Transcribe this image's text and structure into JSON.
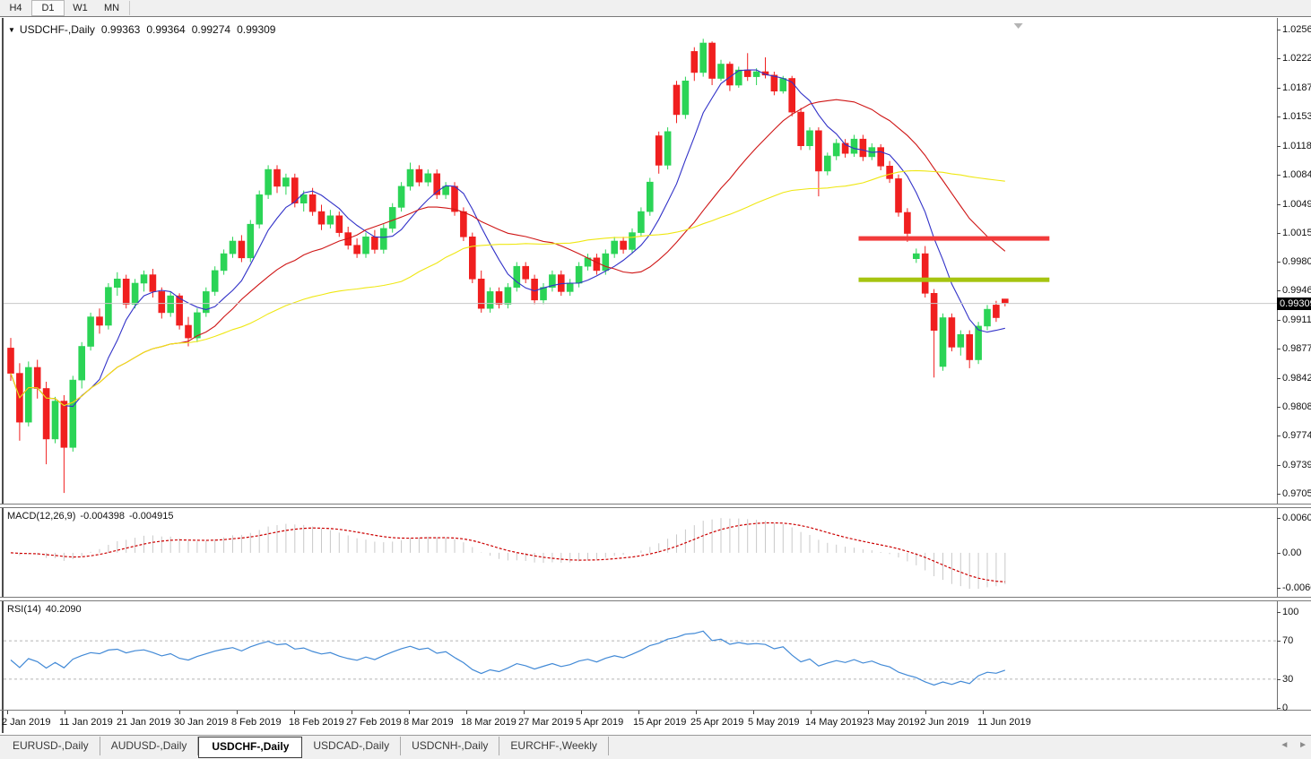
{
  "toolbar": {
    "buttons": [
      "H4",
      "D1",
      "W1",
      "MN"
    ],
    "active": "D1"
  },
  "icons": {
    "dropdown": "▼",
    "scroll_left": "◄",
    "scroll_right": "►"
  },
  "header": {
    "symbol": "USDCHF-,Daily",
    "open": "0.99363",
    "high": "0.99364",
    "low": "0.99274",
    "close": "0.99309"
  },
  "tabs": {
    "labels": [
      "EURUSD-,Daily",
      "AUDUSD-,Daily",
      "USDCHF-,Daily",
      "USDCAD-,Daily",
      "USDCNH-,Daily",
      "EURCHF-,Weekly"
    ],
    "active": "USDCHF-,Daily"
  },
  "chart_data": {
    "type": "candlestick",
    "symbol": "USDCHF",
    "timeframe": "Daily",
    "price_range": [
      0.9705,
      1.0256
    ],
    "current_price": 0.99309,
    "current_price_display": "0.99309",
    "price_axis_ticks": [
      "1.02560",
      "1.02220",
      "1.01870",
      "1.01530",
      "1.01180",
      "1.00840",
      "1.00490",
      "1.00150",
      "0.99800",
      "0.99460",
      "0.99110",
      "0.98770",
      "0.98420",
      "0.98080",
      "0.97740",
      "0.97390",
      "0.97050"
    ],
    "x_axis": {
      "tick_labels": [
        "2 Jan 2019",
        "11 Jan 2019",
        "21 Jan 2019",
        "30 Jan 2019",
        "8 Feb 2019",
        "18 Feb 2019",
        "27 Feb 2019",
        "8 Mar 2019",
        "18 Mar 2019",
        "27 Mar 2019",
        "5 Apr 2019",
        "15 Apr 2019",
        "25 Apr 2019",
        "5 May 2019",
        "14 May 2019",
        "23 May 2019",
        "2 Jun 2019",
        "11 Jun 2019"
      ],
      "tick_x": [
        4,
        68,
        132,
        196,
        260,
        324,
        388,
        452,
        516,
        580,
        644,
        708,
        772,
        836,
        900,
        964,
        1028,
        1092
      ]
    },
    "candles": [
      [
        0.9878,
        0.989,
        0.9839,
        0.9848
      ],
      [
        0.9848,
        0.986,
        0.9768,
        0.979
      ],
      [
        0.979,
        0.9862,
        0.9785,
        0.9855
      ],
      [
        0.9855,
        0.9864,
        0.9818,
        0.983
      ],
      [
        0.983,
        0.9838,
        0.974,
        0.977
      ],
      [
        0.977,
        0.982,
        0.9765,
        0.9815
      ],
      [
        0.9815,
        0.9822,
        0.9706,
        0.976
      ],
      [
        0.976,
        0.9845,
        0.9755,
        0.984
      ],
      [
        0.984,
        0.9885,
        0.983,
        0.988
      ],
      [
        0.988,
        0.992,
        0.9875,
        0.9915
      ],
      [
        0.9915,
        0.9925,
        0.9895,
        0.9905
      ],
      [
        0.9905,
        0.9955,
        0.99,
        0.995
      ],
      [
        0.995,
        0.9968,
        0.994,
        0.996
      ],
      [
        0.996,
        0.9965,
        0.9925,
        0.993
      ],
      [
        0.993,
        0.996,
        0.9925,
        0.9955
      ],
      [
        0.9955,
        0.997,
        0.9945,
        0.9965
      ],
      [
        0.9965,
        0.9972,
        0.9938,
        0.9945
      ],
      [
        0.9945,
        0.995,
        0.9913,
        0.992
      ],
      [
        0.992,
        0.9945,
        0.9915,
        0.994
      ],
      [
        0.994,
        0.9943,
        0.99,
        0.9905
      ],
      [
        0.9905,
        0.9915,
        0.988,
        0.989
      ],
      [
        0.989,
        0.9925,
        0.9885,
        0.992
      ],
      [
        0.992,
        0.995,
        0.9915,
        0.9945
      ],
      [
        0.9945,
        0.9975,
        0.994,
        0.997
      ],
      [
        0.997,
        0.9995,
        0.9965,
        0.999
      ],
      [
        0.999,
        1.001,
        0.9985,
        1.0005
      ],
      [
        1.0005,
        1.0012,
        0.998,
        0.9985
      ],
      [
        0.9985,
        1.003,
        0.998,
        1.0025
      ],
      [
        1.0025,
        1.0065,
        1.002,
        1.006
      ],
      [
        1.006,
        1.0095,
        1.0055,
        1.009
      ],
      [
        1.009,
        1.0095,
        1.0062,
        1.007
      ],
      [
        1.007,
        1.0085,
        1.006,
        1.008
      ],
      [
        1.008,
        1.0085,
        1.0045,
        1.005
      ],
      [
        1.005,
        1.0065,
        1.004,
        1.006
      ],
      [
        1.006,
        1.0068,
        1.0035,
        1.004
      ],
      [
        1.004,
        1.0048,
        1.0018,
        1.0025
      ],
      [
        1.0025,
        1.0042,
        1.002,
        1.0035
      ],
      [
        1.0035,
        1.004,
        1.001,
        1.0015
      ],
      [
        1.0015,
        1.0022,
        0.9995,
        1.0
      ],
      [
        1.0,
        1.0008,
        0.9985,
        0.999
      ],
      [
        0.999,
        1.0015,
        0.9985,
        1.001
      ],
      [
        1.001,
        1.0018,
        0.999,
        0.9995
      ],
      [
        0.9995,
        1.0025,
        0.999,
        1.002
      ],
      [
        1.002,
        1.005,
        1.0015,
        1.0045
      ],
      [
        1.0045,
        1.0075,
        1.004,
        1.007
      ],
      [
        1.007,
        1.0098,
        1.0065,
        1.009
      ],
      [
        1.009,
        1.0095,
        1.007,
        1.0075
      ],
      [
        1.0075,
        1.009,
        1.007,
        1.0085
      ],
      [
        1.0085,
        1.009,
        1.0055,
        1.006
      ],
      [
        1.006,
        1.0075,
        1.0055,
        1.007
      ],
      [
        1.007,
        1.0075,
        1.0035,
        1.004
      ],
      [
        1.004,
        1.0045,
        1.0005,
        1.001
      ],
      [
        1.001,
        1.0015,
        0.9955,
        0.996
      ],
      [
        0.996,
        0.997,
        0.992,
        0.9925
      ],
      [
        0.9925,
        0.995,
        0.992,
        0.9945
      ],
      [
        0.9945,
        0.995,
        0.9925,
        0.993
      ],
      [
        0.993,
        0.9955,
        0.9925,
        0.995
      ],
      [
        0.995,
        0.998,
        0.9945,
        0.9975
      ],
      [
        0.9975,
        0.998,
        0.9955,
        0.996
      ],
      [
        0.996,
        0.9965,
        0.993,
        0.9935
      ],
      [
        0.9935,
        0.9955,
        0.993,
        0.995
      ],
      [
        0.995,
        0.997,
        0.9945,
        0.9965
      ],
      [
        0.9965,
        0.997,
        0.994,
        0.9945
      ],
      [
        0.9945,
        0.996,
        0.994,
        0.9955
      ],
      [
        0.9955,
        0.998,
        0.995,
        0.9975
      ],
      [
        0.9975,
        0.999,
        0.997,
        0.9985
      ],
      [
        0.9985,
        0.999,
        0.9965,
        0.997
      ],
      [
        0.997,
        0.9995,
        0.9965,
        0.999
      ],
      [
        0.999,
        1.001,
        0.9985,
        1.0005
      ],
      [
        1.0005,
        1.001,
        0.999,
        0.9995
      ],
      [
        0.9995,
        1.002,
        0.999,
        1.0015
      ],
      [
        1.0015,
        1.0045,
        1.001,
        1.004
      ],
      [
        1.004,
        1.008,
        1.0035,
        1.0075
      ],
      [
        1.013,
        1.0135,
        1.0085,
        1.0095
      ],
      [
        1.0095,
        1.014,
        1.009,
        1.0135
      ],
      [
        1.019,
        1.0195,
        1.0145,
        1.0155
      ],
      [
        1.0155,
        1.02,
        1.015,
        1.0195
      ],
      [
        1.023,
        1.0235,
        1.0195,
        1.0205
      ],
      [
        1.0205,
        1.0245,
        1.02,
        1.024
      ],
      [
        1.024,
        1.0242,
        1.019,
        1.0198
      ],
      [
        1.0198,
        1.022,
        1.0195,
        1.0215
      ],
      [
        1.0215,
        1.0218,
        1.0183,
        1.019
      ],
      [
        1.019,
        1.0212,
        1.0187,
        1.0208
      ],
      [
        1.0208,
        1.0228,
        1.0195,
        1.02
      ],
      [
        1.02,
        1.021,
        1.019,
        1.0206
      ],
      [
        1.0206,
        1.0223,
        1.0198,
        1.0202
      ],
      [
        1.0202,
        1.0206,
        1.0178,
        1.0183
      ],
      [
        1.0183,
        1.0201,
        1.018,
        1.0198
      ],
      [
        1.0198,
        1.0201,
        1.0153,
        1.0158
      ],
      [
        1.0158,
        1.0163,
        1.0113,
        1.0118
      ],
      [
        1.0118,
        1.014,
        1.0113,
        1.0136
      ],
      [
        1.0136,
        1.014,
        1.0058,
        1.0088
      ],
      [
        1.0088,
        1.011,
        1.0083,
        1.0106
      ],
      [
        1.0106,
        1.0126,
        1.0101,
        1.0121
      ],
      [
        1.0121,
        1.0126,
        1.0104,
        1.0109
      ],
      [
        1.0109,
        1.0131,
        1.0105,
        1.0126
      ],
      [
        1.0126,
        1.0131,
        1.01,
        1.0105
      ],
      [
        1.0105,
        1.0121,
        1.0101,
        1.0116
      ],
      [
        1.0116,
        1.012,
        1.0089,
        1.0094
      ],
      [
        1.0094,
        1.01,
        1.0074,
        1.0079
      ],
      [
        1.0079,
        1.0084,
        1.0034,
        1.0039
      ],
      [
        1.0039,
        1.0044,
        1.0004,
        1.0014
      ],
      [
        0.9984,
        0.9996,
        0.9979,
        0.999
      ],
      [
        0.999,
        0.9999,
        0.9938,
        0.9943
      ],
      [
        0.9943,
        0.9948,
        0.9843,
        0.9899
      ],
      [
        0.9856,
        0.9919,
        0.9851,
        0.9914
      ],
      [
        0.9914,
        0.9919,
        0.9874,
        0.9879
      ],
      [
        0.9879,
        0.9899,
        0.9869,
        0.9894
      ],
      [
        0.9894,
        0.9899,
        0.9854,
        0.9864
      ],
      [
        0.9864,
        0.9909,
        0.9859,
        0.9904
      ],
      [
        0.9904,
        0.9929,
        0.9899,
        0.9924
      ],
      [
        0.9929,
        0.9934,
        0.9909,
        0.9914
      ],
      [
        0.99363,
        0.99364,
        0.99274,
        0.99309
      ]
    ],
    "moving_averages": [
      {
        "name": "fast-ma",
        "period": 7,
        "color": "#3232c8"
      },
      {
        "name": "medium-ma",
        "period": 20,
        "color": "#cf1616"
      },
      {
        "name": "slow-ma",
        "period": 45,
        "color": "#efe712"
      }
    ],
    "hlines": [
      {
        "price": 1.0008,
        "from_bar": 95.5,
        "to_bar": 117,
        "color": "#f23b3b",
        "thickness": 5
      },
      {
        "price": 0.9959,
        "from_bar": 95.5,
        "to_bar": 117,
        "color": "#a6c410",
        "thickness": 5
      }
    ],
    "macd": {
      "label": "MACD(12,26,9)",
      "main_display": "-0.004398",
      "signal_display": "-0.004915",
      "axis": {
        "max": 0.006058,
        "min": -0.006096
      },
      "axis_ticks": [
        "0.006058",
        "0.00",
        "-0.006096"
      ],
      "histogram_color": "#c9c9c9",
      "signal_color": "#cc0000"
    },
    "rsi": {
      "label": "RSI(14)",
      "value_display": "40.2090",
      "levels": [
        70,
        30
      ],
      "axis_ticks": [
        "100",
        "70",
        "30",
        "0"
      ],
      "color": "#4189d6"
    },
    "colors": {
      "bull": "#2bd456",
      "bear": "#f01f1f",
      "price_line": "#c8c8c8"
    }
  }
}
